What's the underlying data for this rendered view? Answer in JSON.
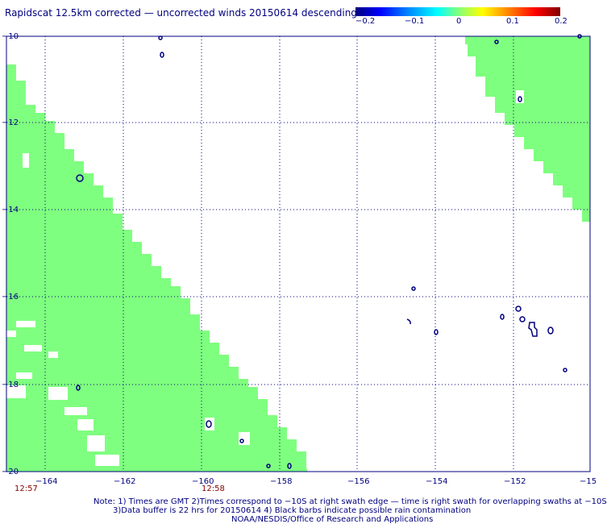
{
  "title": "Rapidscat 12.5km corrected — uncorrected winds 20150614 descending",
  "colorbar": {
    "ticks": [
      "−0.2",
      "−0.1",
      "0",
      "0.1",
      "0.2"
    ],
    "values": [
      -0.2,
      -0.1,
      0,
      0.1,
      0.2
    ]
  },
  "lon_labels": [
    "−164",
    "−162",
    "−160",
    "−158",
    "−156",
    "−154",
    "−152",
    "−15"
  ],
  "lat_labels": [
    "−10",
    "−12",
    "−14",
    "−16",
    "−18",
    "−20"
  ],
  "times": [
    "12:57",
    "12:58"
  ],
  "notes": [
    "Note: 1) Times are GMT 2)Times correspond to −10S at right swath edge — time is right swath for overlapping swaths at −10S",
    "3)Data buffer is 22 hrs for 20150614 4) Black barbs indicate possible rain contamination",
    "NOAA/NESDIS/Office of Research and Applications"
  ],
  "colors": {
    "swath": "#7fff7f",
    "text": "#000080",
    "time": "#800000",
    "grid": "#000080"
  }
}
